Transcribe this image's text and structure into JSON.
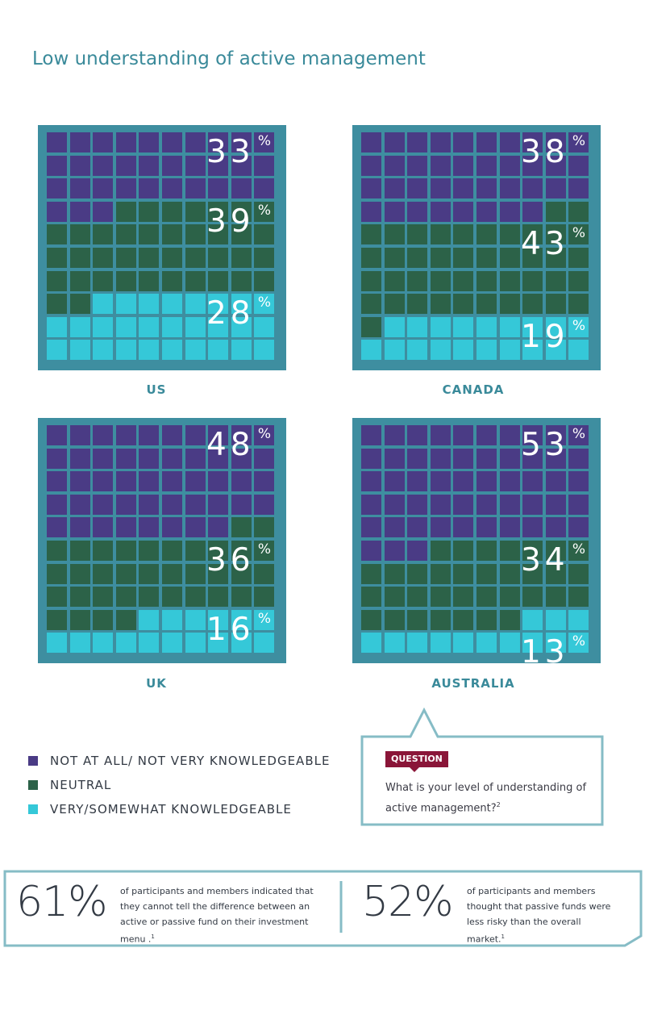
{
  "title": "Low understanding of active management",
  "chart_data": [
    {
      "type": "waffle",
      "country": "US",
      "categories": [
        "NOT AT ALL/ NOT VERY KNOWLEDGEABLE",
        "NEUTRAL",
        "VERY/SOMEWHAT KNOWLEDGEABLE"
      ],
      "values": [
        33,
        39,
        28
      ],
      "labels": [
        "33",
        "39",
        "28"
      ]
    },
    {
      "type": "waffle",
      "country": "CANADA",
      "categories": [
        "NOT AT ALL/ NOT VERY KNOWLEDGEABLE",
        "NEUTRAL",
        "VERY/SOMEWHAT KNOWLEDGEABLE"
      ],
      "values": [
        38,
        43,
        19
      ],
      "labels": [
        "38",
        "43",
        "19"
      ]
    },
    {
      "type": "waffle",
      "country": "UK",
      "categories": [
        "NOT AT ALL/ NOT VERY KNOWLEDGEABLE",
        "NEUTRAL",
        "VERY/SOMEWHAT KNOWLEDGEABLE"
      ],
      "values": [
        48,
        36,
        16
      ],
      "labels": [
        "48",
        "36",
        "16"
      ]
    },
    {
      "type": "waffle",
      "country": "AUSTRALIA",
      "categories": [
        "NOT AT ALL/ NOT VERY KNOWLEDGEABLE",
        "NEUTRAL",
        "VERY/SOMEWHAT KNOWLEDGEABLE"
      ],
      "values": [
        53,
        34,
        13
      ],
      "labels": [
        "53",
        "34",
        "13"
      ]
    }
  ],
  "percent_symbol": "%",
  "colors": {
    "not_knowledgeable": "#4a3b85",
    "neutral": "#2c6248",
    "knowledgeable": "#35c8d8",
    "panel": "#3e8ea0",
    "accent": "#3a8a9a",
    "question_badge": "#8a1538"
  },
  "legend": [
    {
      "label": "NOT AT ALL/ NOT VERY KNOWLEDGEABLE",
      "color": "#4a3b85"
    },
    {
      "label": "NEUTRAL",
      "color": "#2c6248"
    },
    {
      "label": "VERY/SOMEWHAT KNOWLEDGEABLE",
      "color": "#35c8d8"
    }
  ],
  "question": {
    "badge": "QUESTION",
    "text": "What is your level of understanding of active management?",
    "footnote": "2"
  },
  "stats": [
    {
      "value": "61%",
      "text": "of participants and members indicated that they cannot tell the difference between an active or passive fund on their investment menu .",
      "footnote": "1"
    },
    {
      "value": "52%",
      "text": "of participants and members thought that passive funds were less risky than the overall market.",
      "footnote": "1"
    }
  ]
}
